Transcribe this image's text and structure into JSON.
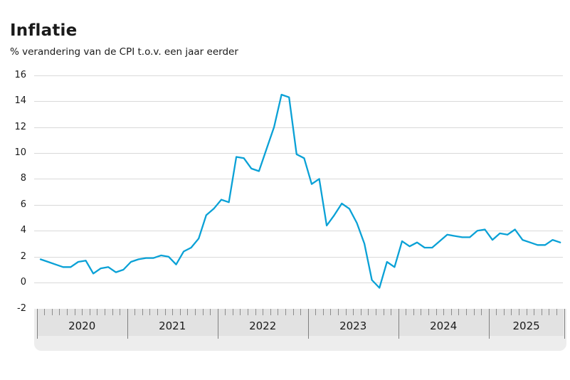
{
  "header": {
    "title": "Inflatie",
    "subtitle": "% verandering van de CPI t.o.v. een jaar eerder"
  },
  "chart_data": {
    "type": "line",
    "title": "Inflatie",
    "subtitle": "% verandering van de CPI t.o.v. een jaar eerder",
    "unit": "%",
    "x_start": "2020-01",
    "x_end": "2025-10",
    "year_labels": [
      "2020",
      "2021",
      "2022",
      "2023",
      "2024",
      "2025"
    ],
    "months_per_year": [
      12,
      12,
      12,
      12,
      12,
      10
    ],
    "series": [
      {
        "name": "CPI jaarmutatie",
        "values": [
          1.8,
          1.6,
          1.4,
          1.2,
          1.2,
          1.6,
          1.7,
          0.7,
          1.1,
          1.2,
          0.8,
          1.0,
          1.6,
          1.8,
          1.9,
          1.9,
          2.1,
          2.0,
          1.4,
          2.4,
          2.7,
          3.4,
          5.2,
          5.7,
          6.4,
          6.2,
          9.7,
          9.6,
          8.8,
          8.6,
          10.3,
          12.0,
          14.5,
          14.3,
          9.9,
          9.6,
          7.6,
          8.0,
          4.4,
          5.2,
          6.1,
          5.7,
          4.6,
          3.0,
          0.2,
          -0.4,
          1.6,
          1.2,
          3.2,
          2.8,
          3.1,
          2.7,
          2.7,
          3.2,
          3.7,
          3.6,
          3.5,
          3.5,
          4.0,
          4.1,
          3.3,
          3.8,
          3.7,
          4.1,
          3.3,
          3.1,
          2.9,
          2.9,
          3.3,
          3.1
        ]
      }
    ],
    "ylim": [
      -2,
      16
    ],
    "yticks": [
      16,
      14,
      12,
      10,
      8,
      6,
      4,
      2,
      0,
      -2
    ],
    "grid": true,
    "legend_position": "none",
    "x_axis_style": "gray band with monthly ticks and year separators"
  },
  "colors": {
    "line": "#0aa1d6",
    "gridline": "#d9d9d9",
    "axis_band": "#e2e2e2",
    "axis_strip": "#ededed",
    "tick": "#8c8c8c",
    "separator": "#808080",
    "text": "#1a1a1a",
    "background": "#ffffff"
  }
}
